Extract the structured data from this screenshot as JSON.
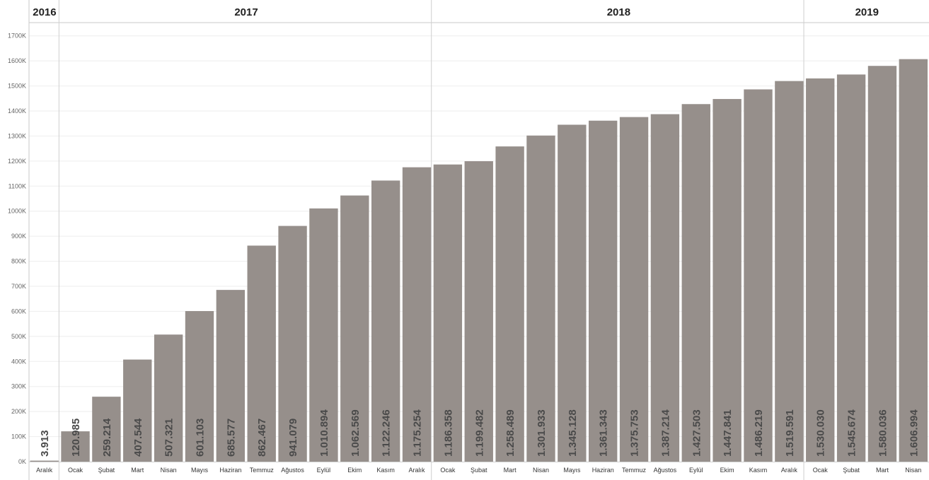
{
  "chart_data": {
    "type": "bar",
    "title": "",
    "xlabel": "",
    "ylabel": "",
    "ylim": [
      0,
      1750000
    ],
    "yticks": [
      0,
      100000,
      200000,
      300000,
      400000,
      500000,
      600000,
      700000,
      800000,
      900000,
      1000000,
      1100000,
      1200000,
      1300000,
      1400000,
      1500000,
      1600000,
      1700000
    ],
    "ytick_labels": [
      "0K",
      "100K",
      "200K",
      "300K",
      "400K",
      "500K",
      "600K",
      "700K",
      "800K",
      "900K",
      "1000K",
      "1100K",
      "1200K",
      "1300K",
      "1400K",
      "1500K",
      "1600K",
      "1700K"
    ],
    "grid": true,
    "bar_color": "#968f8b",
    "years": [
      {
        "label": "2016",
        "count": 1
      },
      {
        "label": "2017",
        "count": 12
      },
      {
        "label": "2018",
        "count": 12
      },
      {
        "label": "2019",
        "count": 4
      }
    ],
    "categories": [
      "Aralık",
      "Ocak",
      "Şubat",
      "Mart",
      "Nisan",
      "Mayıs",
      "Haziran",
      "Temmuz",
      "Ağustos",
      "Eylül",
      "Ekim",
      "Kasım",
      "Aralık",
      "Ocak",
      "Şubat",
      "Mart",
      "Nisan",
      "Mayıs",
      "Haziran",
      "Temmuz",
      "Ağustos",
      "Eylül",
      "Ekim",
      "Kasım",
      "Aralık",
      "Ocak",
      "Şubat",
      "Mart",
      "Nisan"
    ],
    "values": [
      3913,
      120985,
      259214,
      407544,
      507321,
      601103,
      685577,
      862467,
      941079,
      1010894,
      1062569,
      1122246,
      1175254,
      1186358,
      1199482,
      1258489,
      1301933,
      1345128,
      1361343,
      1375753,
      1387214,
      1427503,
      1447841,
      1486219,
      1519591,
      1530030,
      1545674,
      1580036,
      1606994
    ],
    "value_labels": [
      "3.913",
      "120.985",
      "259.214",
      "407.544",
      "507.321",
      "601.103",
      "685.577",
      "862.467",
      "941.079",
      "1.010.894",
      "1.062.569",
      "1.122.246",
      "1.175.254",
      "1.186.358",
      "1.199.482",
      "1.258.489",
      "1.301.933",
      "1.345.128",
      "1.361.343",
      "1.375.753",
      "1.387.214",
      "1.427.503",
      "1.447.841",
      "1.486.219",
      "1.519.591",
      "1.530.030",
      "1.545.674",
      "1.580.036",
      "1.606.994"
    ]
  }
}
